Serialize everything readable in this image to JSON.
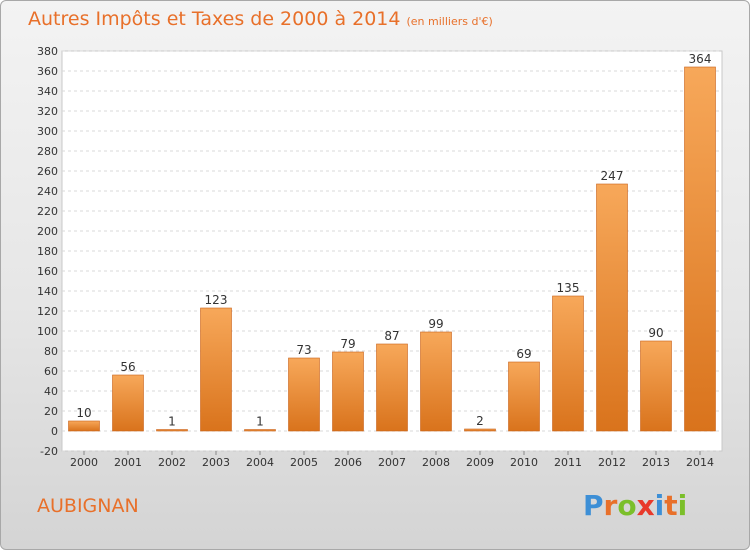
{
  "title": "Autres Impôts et Taxes de 2000 à 2014",
  "subtitle": "(en milliers d'€)",
  "commune": "AUBIGNAN",
  "logo": {
    "letters": [
      "P",
      "r",
      "o",
      "x",
      "i",
      "t",
      "i"
    ],
    "colors": [
      "#3d8fd6",
      "#e8702a",
      "#7bbf2a",
      "#e8392a",
      "#3d8fd6",
      "#e8702a",
      "#7bbf2a"
    ]
  },
  "colors": {
    "accent": "#e8702a",
    "bar_top": "#f7a85a",
    "bar_bottom": "#d9731c"
  },
  "chart_data": {
    "type": "bar",
    "categories": [
      "2000",
      "2001",
      "2002",
      "2003",
      "2004",
      "2005",
      "2006",
      "2007",
      "2008",
      "2009",
      "2010",
      "2011",
      "2012",
      "2013",
      "2014"
    ],
    "values": [
      10,
      56,
      1,
      123,
      1,
      73,
      79,
      87,
      99,
      2,
      69,
      135,
      247,
      90,
      364
    ],
    "value_labels": [
      "10",
      "56",
      "1",
      "123",
      "1",
      "73",
      "79",
      "87",
      "99",
      "2",
      "69",
      "135",
      "247",
      "90",
      "364"
    ],
    "ylim": [
      -20,
      380
    ],
    "yticks": [
      -20,
      0,
      20,
      40,
      60,
      80,
      100,
      120,
      140,
      160,
      180,
      200,
      220,
      240,
      260,
      280,
      300,
      320,
      340,
      360,
      380
    ],
    "ytick_labels": [
      "-20",
      "0",
      "20",
      "40",
      "60",
      "80",
      "100",
      "120",
      "140",
      "160",
      "180",
      "200",
      "220",
      "240",
      "260",
      "280",
      "300",
      "320",
      "340",
      "360",
      "380"
    ],
    "grid": true
  }
}
